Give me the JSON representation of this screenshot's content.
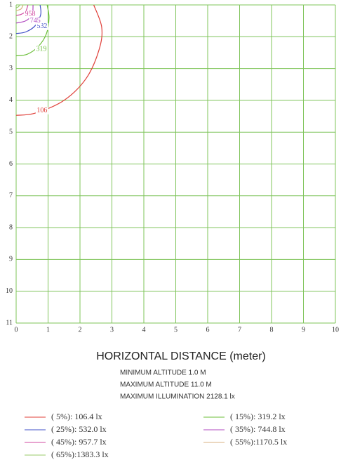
{
  "chart_data": {
    "type": "contour",
    "xlim": [
      0,
      10
    ],
    "xticks": [
      0,
      1,
      2,
      3,
      4,
      5,
      6,
      7,
      8,
      9,
      10
    ],
    "ylim": [
      1,
      11
    ],
    "yticks": [
      1,
      2,
      3,
      4,
      5,
      6,
      7,
      8,
      9,
      10,
      11
    ],
    "y_inverted": true,
    "grid": true,
    "grid_color": "#7fc45a",
    "x_label": "HORIZONTAL DISTANCE (meter)",
    "notes": [
      "MINIMUM  ALTITUDE  1.0 M",
      "MAXIMUM  ALTITUDE  11.0 M",
      "MAXIMUM  ILLUMINATION 2128.1 lx"
    ],
    "series": [
      {
        "name": "( 5%): 106.4 lx",
        "color": "#e0403a",
        "label": 106,
        "label_at": [
          0.81,
          4.33
        ],
        "x": [
          2.43,
          2.68,
          2.6,
          2.2,
          1.5,
          0.6,
          0
        ],
        "y": [
          1,
          1.7,
          2.4,
          3.3,
          4.0,
          4.4,
          4.47
        ]
      },
      {
        "name": "( 15%): 319.2 lx",
        "color": "#6cbf3a",
        "label": 319,
        "label_at": [
          0.79,
          2.39
        ],
        "x": [
          0.97,
          1.03,
          0.95,
          0.7,
          0.35,
          0
        ],
        "y": [
          1,
          1.4,
          1.9,
          2.3,
          2.55,
          2.6
        ]
      },
      {
        "name": "( 25%): 532.0 lx",
        "color": "#4050c8",
        "label": 532,
        "label_at": [
          0.81,
          1.68
        ],
        "x": [
          0.75,
          0.77,
          0.6,
          0.3,
          0
        ],
        "y": [
          1,
          1.3,
          1.65,
          1.85,
          1.9
        ]
      },
      {
        "name": "( 35%): 744.8 lx",
        "color": "#b048c0",
        "label": 745,
        "label_at": [
          0.6,
          1.5
        ],
        "x": [
          0.53,
          0.5,
          0.3,
          0
        ],
        "y": [
          1,
          1.3,
          1.5,
          1.57
        ]
      },
      {
        "name": "( 45%): 957.7 lx",
        "color": "#d048a0",
        "label": 958,
        "label_at": [
          0.44,
          1.29
        ],
        "x": [
          0.37,
          0.3,
          0.15,
          0
        ],
        "y": [
          1,
          1.2,
          1.3,
          1.33
        ]
      },
      {
        "name": "( 55%):1170.5 lx",
        "color": "#d8b080",
        "x": [
          0.22,
          0.15,
          0
        ],
        "y": [
          1,
          1.13,
          1.18
        ]
      },
      {
        "name": "( 65%):1383.3 lx",
        "color": "#9acb6a",
        "x": [
          0.11,
          0.07,
          0
        ],
        "y": [
          1,
          1.06,
          1.09
        ]
      }
    ]
  }
}
